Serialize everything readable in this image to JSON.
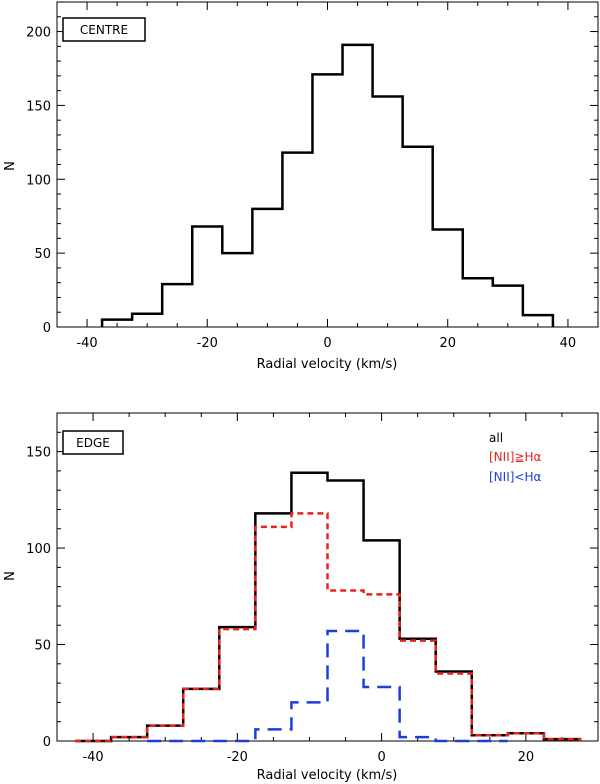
{
  "chart_data": [
    {
      "type": "histogram",
      "panel_label": "CENTRE",
      "xlabel": "Radial velocity (km/s)",
      "ylabel": "N",
      "xlim": [
        -45,
        45
      ],
      "ylim": [
        0,
        220
      ],
      "xticks": [
        -40,
        -20,
        0,
        20,
        40
      ],
      "yticks": [
        0,
        50,
        100,
        150,
        200
      ],
      "grid": false,
      "series": [
        {
          "name": "all",
          "color": "#000000",
          "style": "solid",
          "bin_edges": [
            -37.5,
            -32.5,
            -27.5,
            -22.5,
            -17.5,
            -12.5,
            -7.5,
            -2.5,
            2.5,
            7.5,
            12.5,
            17.5,
            22.5,
            27.5,
            32.5,
            37.5
          ],
          "counts": [
            5,
            9,
            29,
            68,
            50,
            80,
            118,
            171,
            191,
            156,
            122,
            66,
            33,
            28,
            8
          ]
        }
      ]
    },
    {
      "type": "histogram",
      "panel_label": "EDGE",
      "xlabel": "Radial velocity (km/s)",
      "ylabel": "N",
      "xlim": [
        -45,
        30
      ],
      "ylim": [
        0,
        170
      ],
      "xticks": [
        -40,
        -20,
        0,
        20
      ],
      "yticks": [
        0,
        50,
        100,
        150
      ],
      "grid": false,
      "legend": {
        "placement": "top-right"
      },
      "series": [
        {
          "name": "all",
          "color": "#000000",
          "style": "solid",
          "bin_edges": [
            -42.5,
            -37.5,
            -32.5,
            -27.5,
            -22.5,
            -17.5,
            -12.5,
            -7.5,
            -2.5,
            2.5,
            7.5,
            12.5,
            17.5,
            22.5,
            27.5
          ],
          "counts": [
            0,
            2,
            8,
            27,
            59,
            118,
            139,
            135,
            104,
            53,
            36,
            3,
            4,
            1
          ]
        },
        {
          "name": "[NII]≧Hα",
          "color": "#e8231c",
          "style": "dashed-short",
          "bin_edges": [
            -42.5,
            -37.5,
            -32.5,
            -27.5,
            -22.5,
            -17.5,
            -12.5,
            -7.5,
            -2.5,
            2.5,
            7.5,
            12.5,
            17.5,
            22.5,
            27.5
          ],
          "counts": [
            0,
            2,
            8,
            27,
            58,
            111,
            118,
            78,
            76,
            52,
            35,
            3,
            4,
            1
          ]
        },
        {
          "name": "[NII]<Hα",
          "color": "#1c3fd9",
          "style": "dashed-long",
          "bin_edges": [
            -32.5,
            -27.5,
            -22.5,
            -17.5,
            -12.5,
            -7.5,
            -2.5,
            2.5,
            7.5,
            12.5,
            17.5
          ],
          "counts": [
            0,
            0,
            0,
            6,
            20,
            57,
            28,
            2,
            0,
            0
          ]
        }
      ]
    }
  ]
}
